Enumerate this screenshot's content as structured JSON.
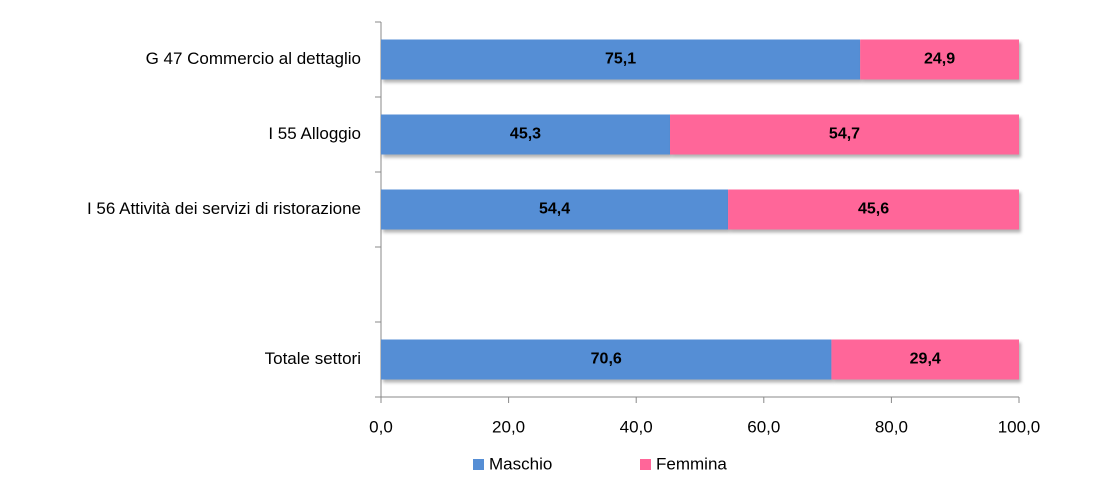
{
  "chart_data": {
    "type": "stacked-bar-horizontal",
    "categories": [
      "G 47 Commercio al dettaglio",
      "I 55 Alloggio",
      "I 56 Attività dei servizi di ristorazione",
      null,
      "Totale settori"
    ],
    "series": [
      {
        "name": "Maschio",
        "color": "#558ed5",
        "values": [
          75.1,
          45.3,
          54.4,
          null,
          70.6
        ],
        "value_labels": [
          "75,1",
          "45,3",
          "54,4",
          null,
          "70,6"
        ]
      },
      {
        "name": "Femmina",
        "color": "#ff6699",
        "values": [
          24.9,
          54.7,
          45.6,
          null,
          29.4
        ],
        "value_labels": [
          "24,9",
          "54,7",
          "45,6",
          null,
          "29,4"
        ]
      }
    ],
    "xlim": [
      0,
      100
    ],
    "xticks": [
      {
        "value": 0,
        "label": "0,0"
      },
      {
        "value": 20,
        "label": "20,0"
      },
      {
        "value": 40,
        "label": "40,0"
      },
      {
        "value": 60,
        "label": "60,0"
      },
      {
        "value": 80,
        "label": "80,0"
      },
      {
        "value": 100,
        "label": "100,0"
      }
    ],
    "legend": "bottom"
  }
}
